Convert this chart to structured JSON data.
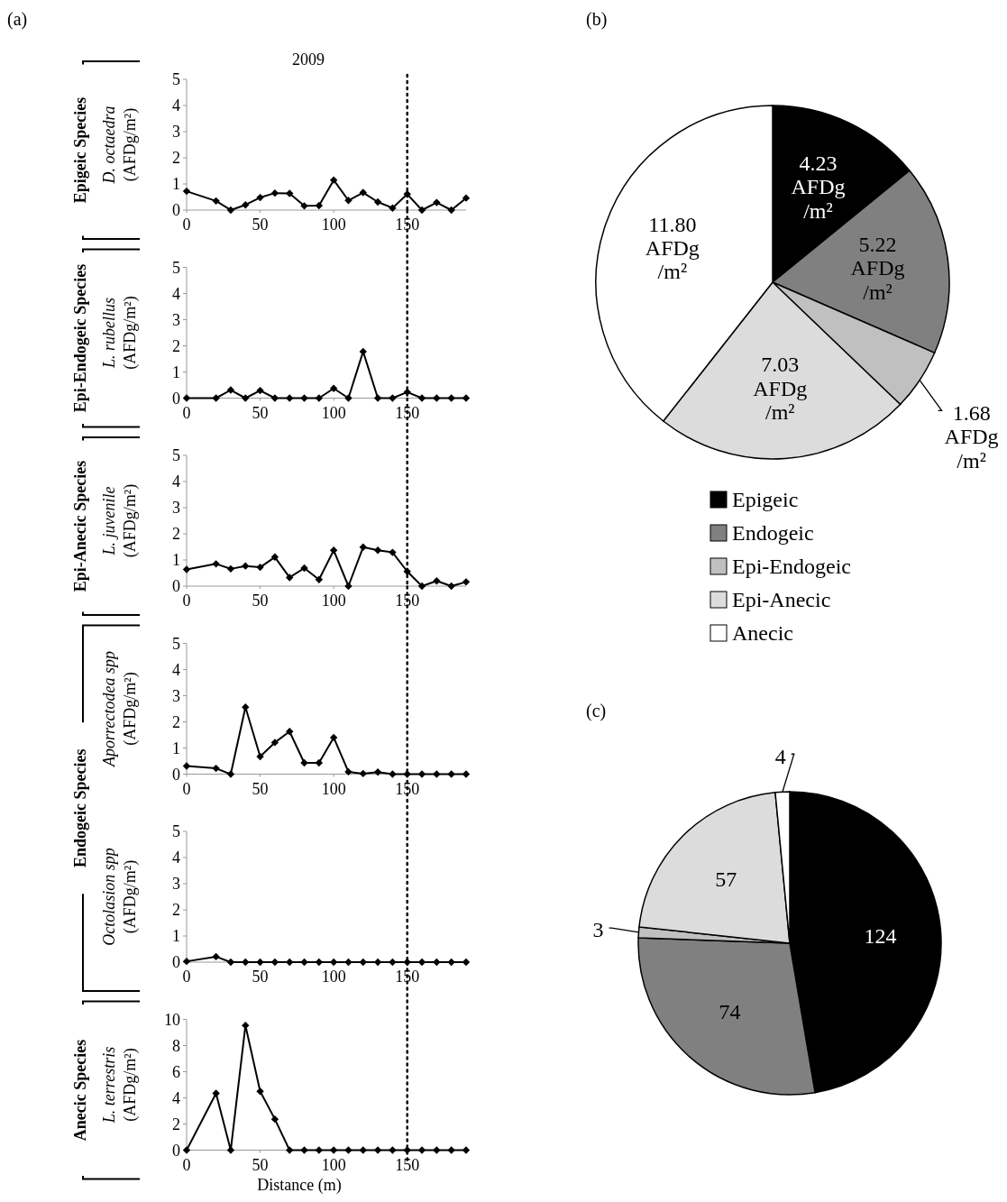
{
  "chart_data": [
    {
      "type": "line",
      "title": "2009",
      "ylabel": "D. octaedra (AFDg/m²)",
      "annotations": [
        "(a)",
        "Epigeic Species"
      ],
      "x": [
        0,
        20,
        30,
        40,
        50,
        60,
        70,
        80,
        90,
        100,
        110,
        120,
        130,
        140,
        150,
        160,
        170,
        180,
        190
      ],
      "xlim": [
        0,
        190
      ],
      "xticks": [
        0,
        50,
        100,
        150
      ],
      "ylim": [
        0,
        5
      ],
      "yticks": [
        0,
        1,
        2,
        3,
        4,
        5
      ],
      "marker": "diamond",
      "grid": false,
      "ref_lines": [
        {
          "axis": "x",
          "value": 150,
          "line_style": "dotted",
          "color": "#000000"
        }
      ],
      "series": [
        {
          "color": "#000000",
          "values": [
            0.72,
            0.35,
            0,
            0.2,
            0.48,
            0.65,
            0.64,
            0.16,
            0.17,
            1.15,
            0.37,
            0.67,
            0.31,
            0.08,
            0.61,
            0,
            0.29,
            0,
            0.46
          ]
        }
      ]
    },
    {
      "type": "line",
      "ylabel": "L. rubellus (AFDg/m²)",
      "annotations": [
        "Epi-Endogeic Species"
      ],
      "x": [
        0,
        20,
        30,
        40,
        50,
        60,
        70,
        80,
        90,
        100,
        110,
        120,
        130,
        140,
        150,
        160,
        170,
        180,
        190
      ],
      "xlim": [
        0,
        190
      ],
      "xticks": [
        0,
        50,
        100,
        150
      ],
      "ylim": [
        0,
        5
      ],
      "yticks": [
        0,
        1,
        2,
        3,
        4,
        5
      ],
      "marker": "diamond",
      "grid": false,
      "ref_lines": [
        {
          "axis": "x",
          "value": 150,
          "line_style": "dotted",
          "color": "#000000"
        }
      ],
      "series": [
        {
          "color": "#000000",
          "values": [
            0,
            0,
            0.31,
            0,
            0.29,
            0,
            0,
            0,
            0,
            0.37,
            0,
            1.78,
            0,
            0,
            0.23,
            0,
            0,
            0,
            0
          ]
        }
      ]
    },
    {
      "type": "line",
      "ylabel": "L. juvenile (AFDg/m²)",
      "annotations": [
        "Epi-Anecic Species"
      ],
      "x": [
        0,
        20,
        30,
        40,
        50,
        60,
        70,
        80,
        90,
        100,
        110,
        120,
        130,
        140,
        150,
        160,
        170,
        180,
        190
      ],
      "xlim": [
        0,
        190
      ],
      "xticks": [
        0,
        50,
        100,
        150
      ],
      "ylim": [
        0,
        5
      ],
      "yticks": [
        0,
        1,
        2,
        3,
        4,
        5
      ],
      "marker": "diamond",
      "grid": false,
      "ref_lines": [
        {
          "axis": "x",
          "value": 150,
          "line_style": "dotted",
          "color": "#000000"
        }
      ],
      "series": [
        {
          "color": "#000000",
          "values": [
            0.64,
            0.85,
            0.66,
            0.77,
            0.72,
            1.11,
            0.33,
            0.69,
            0.25,
            1.37,
            0,
            1.49,
            1.37,
            1.29,
            0.56,
            0,
            0.2,
            0,
            0.16
          ]
        }
      ]
    },
    {
      "type": "line",
      "ylabel": "Aporrectodea spp (AFDg/m²)",
      "annotations": [
        "Endogeic Species"
      ],
      "x": [
        0,
        20,
        30,
        40,
        50,
        60,
        70,
        80,
        90,
        100,
        110,
        120,
        130,
        140,
        150,
        160,
        170,
        180,
        190
      ],
      "xlim": [
        0,
        190
      ],
      "xticks": [
        0,
        50,
        100,
        150
      ],
      "ylim": [
        0,
        5
      ],
      "yticks": [
        0,
        1,
        2,
        3,
        4,
        5
      ],
      "marker": "diamond",
      "grid": false,
      "ref_lines": [
        {
          "axis": "x",
          "value": 150,
          "line_style": "dotted",
          "color": "#000000"
        }
      ],
      "series": [
        {
          "color": "#000000",
          "values": [
            0.31,
            0.22,
            0,
            2.56,
            0.67,
            1.21,
            1.63,
            0.43,
            0.43,
            1.4,
            0.09,
            0.02,
            0.08,
            0,
            0,
            0,
            0,
            0,
            0
          ]
        }
      ]
    },
    {
      "type": "line",
      "ylabel": "Octolasion spp (AFDg/m²)",
      "x": [
        0,
        20,
        30,
        40,
        50,
        60,
        70,
        80,
        90,
        100,
        110,
        120,
        130,
        140,
        150,
        160,
        170,
        180,
        190
      ],
      "xlim": [
        0,
        190
      ],
      "xticks": [
        0,
        50,
        100,
        150
      ],
      "ylim": [
        0,
        5
      ],
      "yticks": [
        0,
        1,
        2,
        3,
        4,
        5
      ],
      "marker": "diamond",
      "grid": false,
      "ref_lines": [
        {
          "axis": "x",
          "value": 150,
          "line_style": "dotted",
          "color": "#000000"
        }
      ],
      "series": [
        {
          "color": "#000000",
          "values": [
            0.03,
            0.21,
            0,
            0,
            0,
            0,
            0,
            0,
            0,
            0,
            0,
            0,
            0,
            0,
            0,
            0,
            0,
            0,
            0
          ]
        }
      ]
    },
    {
      "type": "line",
      "ylabel": "L. terrestris (AFDg/m²)",
      "xlabel": "Distance (m)",
      "annotations": [
        "Anecic Species"
      ],
      "x": [
        0,
        20,
        30,
        40,
        50,
        60,
        70,
        80,
        90,
        100,
        110,
        120,
        130,
        140,
        150,
        160,
        170,
        180,
        190
      ],
      "xlim": [
        0,
        190
      ],
      "xticks": [
        0,
        50,
        100,
        150
      ],
      "ylim": [
        0,
        10
      ],
      "yticks": [
        0,
        2,
        4,
        6,
        8,
        10
      ],
      "marker": "diamond",
      "grid": false,
      "ref_lines": [
        {
          "axis": "x",
          "value": 150,
          "line_style": "dotted",
          "color": "#000000"
        }
      ],
      "series": [
        {
          "color": "#000000",
          "values": [
            0,
            4.35,
            0,
            9.54,
            4.5,
            2.37,
            0,
            0,
            0,
            0,
            0,
            0,
            0,
            0,
            0,
            0,
            0,
            0,
            0
          ]
        }
      ]
    },
    {
      "type": "pie",
      "title": "(b)",
      "categories": [
        "Epigeic",
        "Endogeic",
        "Epi-Endogeic",
        "Epi-Anecic",
        "Anecic"
      ],
      "values": [
        4.23,
        5.22,
        1.68,
        7.03,
        11.8
      ],
      "colors": [
        "#000000",
        "#808080",
        "#c0c0c0",
        "#dcdcdc",
        "#ffffff"
      ],
      "value_labels": [
        "4.23 AFDg /m²",
        "5.22 AFDg /m²",
        "1.68 AFDg /m²",
        "7.03 AFDg /m²",
        "11.80 AFDg /m²"
      ],
      "legend": "bottom"
    },
    {
      "type": "pie",
      "title": "(c)",
      "categories": [
        null,
        null,
        null,
        null,
        null
      ],
      "values": [
        124,
        74,
        3,
        57,
        4
      ],
      "colors": [
        "#000000",
        "#808080",
        "#c0c0c0",
        "#dcdcdc",
        "#ffffff"
      ],
      "data_labels": true,
      "legend": false
    }
  ]
}
